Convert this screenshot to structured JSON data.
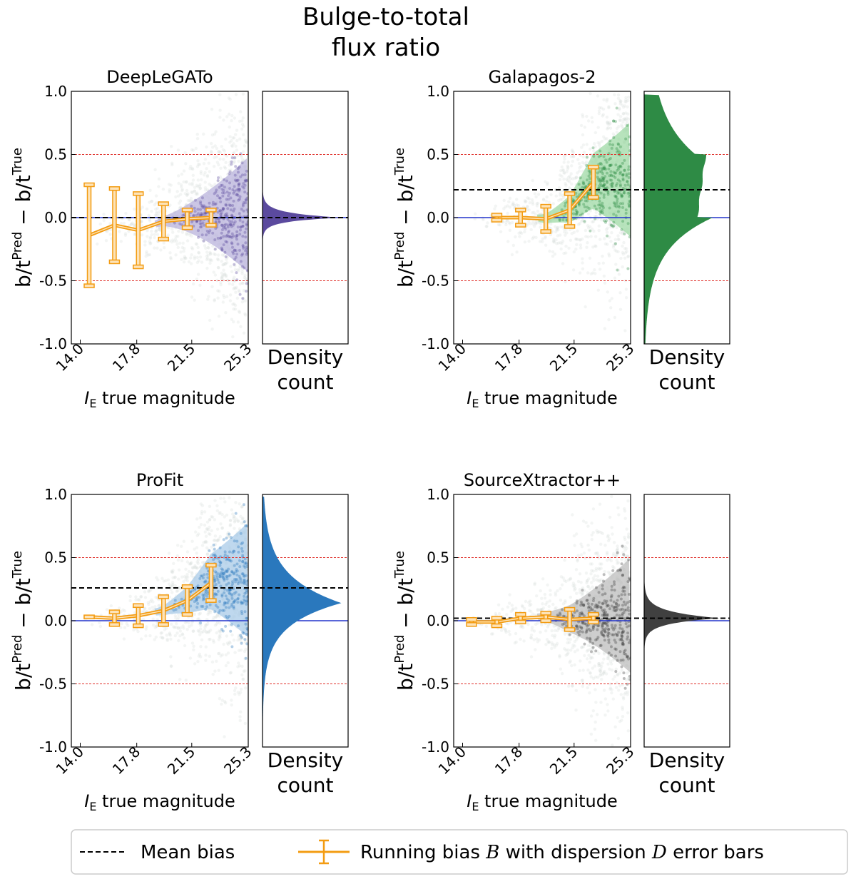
{
  "figure": {
    "title_line1": "Bulge-to-total",
    "title_line2": "flux ratio"
  },
  "legend": {
    "mean_bias_label": "Mean bias",
    "running_bias_label_prefix": "Running bias ",
    "running_bias_symbol": "B",
    "running_bias_label_mid": " with dispersion ",
    "dispersion_symbol": "D",
    "running_bias_label_suffix": " error bars",
    "mean_bias_color": "#000000",
    "running_bias_color": "#f39c12"
  },
  "chart_data": [
    {
      "type": "scatter",
      "title": "DeepLeGATo",
      "xlabel_italic": "I",
      "xlabel_sub": "E",
      "xlabel_rest": " true magnitude",
      "ylabel_main": "b/t",
      "ylabel_sup1": "Pred",
      "ylabel_minus": " − ",
      "ylabel_sup2": "True",
      "side_label_line1": "Density",
      "side_label_line2": "count",
      "xticks": [
        "14.0",
        "17.8",
        "21.5",
        "25.3"
      ],
      "xlim": [
        13.4,
        25.3
      ],
      "ylim": [
        -1.0,
        1.0
      ],
      "yticks": [
        "1.0",
        "0.5",
        "0.0",
        "-0.5",
        "-1.0"
      ],
      "ytick_values": [
        1.0,
        0.5,
        0.0,
        -0.5,
        -1.0
      ],
      "color": "#5b4a9e",
      "light_color": "#b9b3dc",
      "mean_bias": 0.0,
      "threshold_lines": [
        0.5,
        -0.5
      ],
      "running_bias": {
        "x": [
          14.6,
          16.3,
          17.9,
          19.6,
          21.2,
          22.8
        ],
        "y": [
          -0.14,
          -0.06,
          -0.1,
          -0.03,
          -0.01,
          0.0
        ],
        "yerr": [
          0.4,
          0.29,
          0.29,
          0.14,
          0.07,
          0.06
        ]
      },
      "histogram": {
        "center": 0.0,
        "width": 0.05,
        "peak": 0.92,
        "tail": 0.05
      }
    },
    {
      "type": "scatter",
      "title": "Galapagos-2",
      "xlabel_italic": "I",
      "xlabel_sub": "E",
      "xlabel_rest": " true magnitude",
      "ylabel_main": "b/t",
      "ylabel_sup1": "Pred",
      "ylabel_minus": " − ",
      "ylabel_sup2": "True",
      "side_label_line1": "Density",
      "side_label_line2": "count",
      "xticks": [
        "14.0",
        "17.8",
        "21.5",
        "25.3"
      ],
      "xlim": [
        13.4,
        25.3
      ],
      "ylim": [
        -1.0,
        1.0
      ],
      "yticks": [
        "1.0",
        "0.5",
        "0.0",
        "-0.5",
        "-1.0"
      ],
      "ytick_values": [
        1.0,
        0.5,
        0.0,
        -0.5,
        -1.0
      ],
      "color": "#2e8b45",
      "light_color": "#9fd9a6",
      "mean_bias": 0.22,
      "threshold_lines": [
        0.5,
        -0.5
      ],
      "running_bias": {
        "x": [
          16.3,
          17.9,
          19.6,
          21.2,
          22.8
        ],
        "y": [
          0.0,
          0.0,
          -0.01,
          0.06,
          0.28
        ],
        "yerr": [
          0.02,
          0.06,
          0.1,
          0.13,
          0.12
        ]
      },
      "histogram": {
        "center": 0.0,
        "width": 0.3,
        "peak": 0.85,
        "tail": 0.4
      }
    },
    {
      "type": "scatter",
      "title": "ProFit",
      "xlabel_italic": "I",
      "xlabel_sub": "E",
      "xlabel_rest": " true magnitude",
      "ylabel_main": "b/t",
      "ylabel_sup1": "Pred",
      "ylabel_minus": " − ",
      "ylabel_sup2": "True",
      "side_label_line1": "Density",
      "side_label_line2": "count",
      "xticks": [
        "14.0",
        "17.8",
        "21.5",
        "25.3"
      ],
      "xlim": [
        13.4,
        25.3
      ],
      "ylim": [
        -1.0,
        1.0
      ],
      "yticks": [
        "1.0",
        "0.5",
        "0.0",
        "-0.5",
        "-1.0"
      ],
      "ytick_values": [
        1.0,
        0.5,
        0.0,
        -0.5,
        -1.0
      ],
      "color": "#2a78bd",
      "light_color": "#a9cbe8",
      "mean_bias": 0.26,
      "threshold_lines": [
        0.5,
        -0.5
      ],
      "running_bias": {
        "x": [
          14.6,
          16.3,
          17.9,
          19.6,
          21.2,
          22.8
        ],
        "y": [
          0.03,
          0.02,
          0.04,
          0.08,
          0.16,
          0.3
        ],
        "yerr": [
          0.0,
          0.05,
          0.08,
          0.11,
          0.11,
          0.14
        ]
      },
      "histogram": {
        "center": 0.14,
        "width": 0.28,
        "peak": 0.92,
        "tail": 0.5
      }
    },
    {
      "type": "scatter",
      "title": "SourceXtractor++",
      "xlabel_italic": "I",
      "xlabel_sub": "E",
      "xlabel_rest": " true magnitude",
      "ylabel_main": "b/t",
      "ylabel_sup1": "Pred",
      "ylabel_minus": " − ",
      "ylabel_sup2": "True",
      "side_label_line1": "Density",
      "side_label_line2": "count",
      "xticks": [
        "14.0",
        "17.8",
        "21.5",
        "25.3"
      ],
      "xlim": [
        13.4,
        25.3
      ],
      "ylim": [
        -1.0,
        1.0
      ],
      "yticks": [
        "1.0",
        "0.5",
        "0.0",
        "-0.5",
        "-1.0"
      ],
      "ytick_values": [
        1.0,
        0.5,
        0.0,
        -0.5,
        -1.0
      ],
      "color": "#404040",
      "light_color": "#bdbdbd",
      "mean_bias": 0.02,
      "threshold_lines": [
        0.5,
        -0.5
      ],
      "running_bias": {
        "x": [
          14.6,
          16.3,
          17.9,
          19.6,
          21.2,
          22.8
        ],
        "y": [
          -0.01,
          -0.01,
          0.02,
          0.03,
          0.01,
          0.02
        ],
        "yerr": [
          0.02,
          0.03,
          0.03,
          0.03,
          0.08,
          0.03
        ]
      },
      "histogram": {
        "center": 0.02,
        "width": 0.07,
        "peak": 0.88,
        "tail": 0.1
      }
    }
  ]
}
